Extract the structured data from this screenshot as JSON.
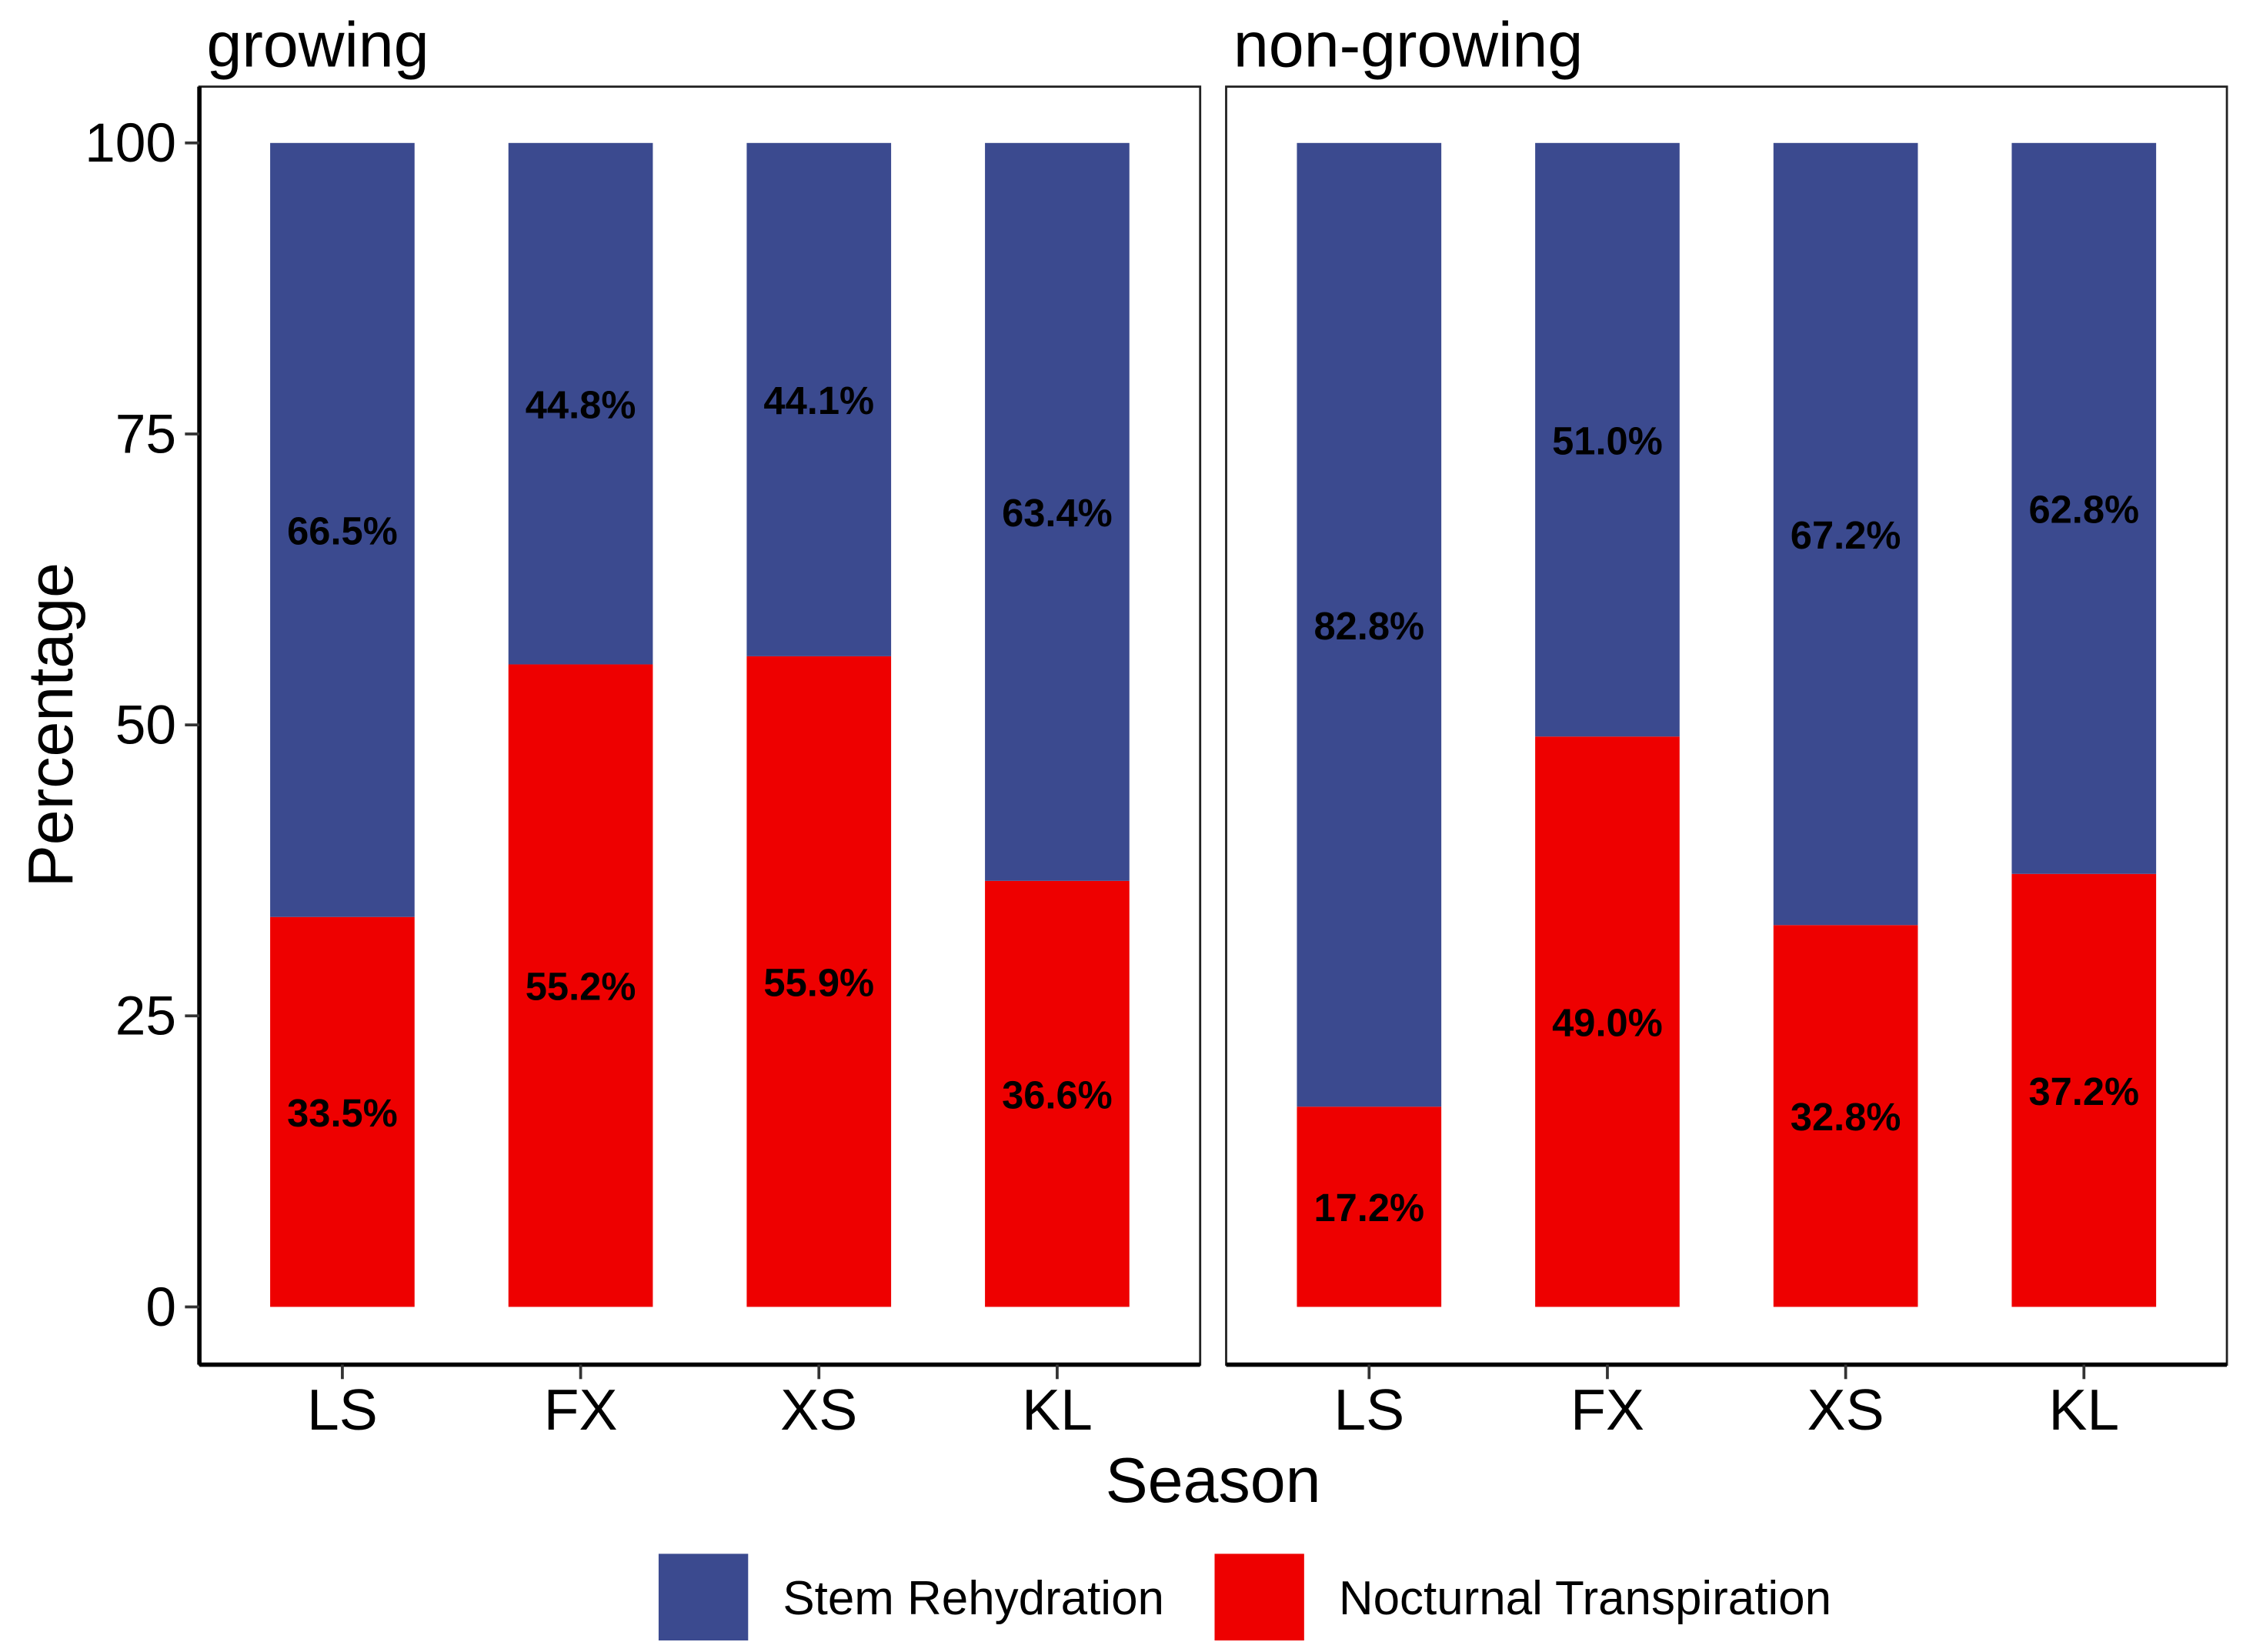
{
  "chart_data": {
    "type": "bar",
    "stacked": true,
    "xlabel": "Season",
    "ylabel": "Percentage",
    "ylim": [
      0,
      100
    ],
    "yticks": [
      "0",
      "25",
      "50",
      "75",
      "100"
    ],
    "categories": [
      "LS",
      "FX",
      "XS",
      "KL"
    ],
    "colors": {
      "Stem Rehydration": "#3B4A8F",
      "Nocturnal Transpiration": "#EE0000"
    },
    "legend": {
      "position": "bottom",
      "entries": [
        "Stem Rehydration",
        "Nocturnal Transpiration"
      ]
    },
    "panels": [
      {
        "title": "growing",
        "series": [
          {
            "name": "Nocturnal Transpiration",
            "values": [
              33.5,
              55.2,
              55.9,
              36.6
            ],
            "labels": [
              "33.5%",
              "55.2%",
              "55.9%",
              "36.6%"
            ]
          },
          {
            "name": "Stem Rehydration",
            "values": [
              66.5,
              44.8,
              44.1,
              63.4
            ],
            "labels": [
              "66.5%",
              "44.8%",
              "44.1%",
              "63.4%"
            ]
          }
        ]
      },
      {
        "title": "non-growing",
        "series": [
          {
            "name": "Nocturnal Transpiration",
            "values": [
              17.2,
              49.0,
              32.8,
              37.2
            ],
            "labels": [
              "17.2%",
              "49.0%",
              "32.8%",
              "37.2%"
            ]
          },
          {
            "name": "Stem Rehydration",
            "values": [
              82.8,
              51.0,
              67.2,
              62.8
            ],
            "labels": [
              "82.8%",
              "51.0%",
              "67.2%",
              "62.8%"
            ]
          }
        ]
      }
    ]
  }
}
